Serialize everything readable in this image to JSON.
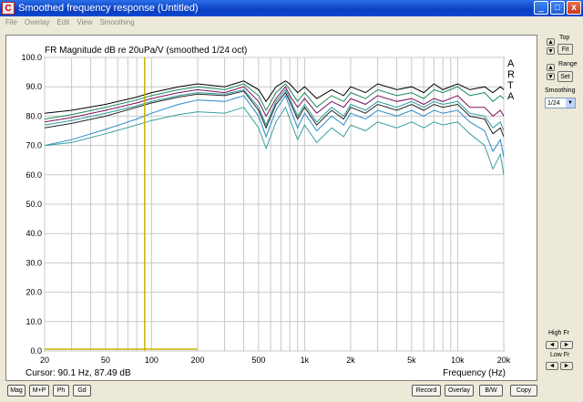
{
  "window": {
    "title": "Smoothed frequency response (Untitled)",
    "app_icon": "C",
    "minimize": "_",
    "maximize": "□",
    "close": "x"
  },
  "menu": [
    "File",
    "Overlay",
    "Edit",
    "View",
    "Smoothing"
  ],
  "right_panel": {
    "top_label": "Top",
    "fit_label": "Fit",
    "range_label": "Range",
    "set_label": "Set",
    "smoothing_label": "Smoothing",
    "smoothing_value": "1/24",
    "high_fr_label": "High Fr",
    "low_fr_label": "Low Fr"
  },
  "bottom_buttons": {
    "mag": "Mag",
    "mp": "M+P",
    "ph": "Ph",
    "gd": "Gd",
    "record": "Record",
    "overlay": "Overlay",
    "bw": "B/W",
    "copy": "Copy"
  },
  "cursor_readout": "Cursor: 90.1 Hz, 87.49 dB",
  "chart_data": {
    "type": "line",
    "title": "FR Magnitude dB re 20uPa/V (smoothed 1/24 oct)",
    "watermark": [
      "A",
      "R",
      "T",
      "A"
    ],
    "xlabel": "Frequency (Hz)",
    "xscale": "log",
    "xlim": [
      20,
      20000
    ],
    "ylim": [
      0,
      100
    ],
    "x_ticks": [
      "20",
      "50",
      "100",
      "200",
      "500",
      "1k",
      "2k",
      "5k",
      "10k",
      "20k"
    ],
    "y_ticks": [
      "0.0",
      "10.0",
      "20.0",
      "30.0",
      "40.0",
      "50.0",
      "60.0",
      "70.0",
      "80.0",
      "90.0",
      "100.0"
    ],
    "grid": true,
    "cursor_x": 90.1,
    "colors": {
      "grid": "#c8c8c8",
      "cursor": "#c8b400",
      "series": [
        "#000000",
        "#1a8a5a",
        "#7a1060",
        "#2a9a9a",
        "#222222",
        "#2a8ac8",
        "#3aa0a0"
      ]
    },
    "x": [
      20,
      30,
      50,
      80,
      100,
      150,
      200,
      300,
      400,
      500,
      560,
      650,
      750,
      800,
      900,
      1000,
      1200,
      1500,
      1800,
      2000,
      2500,
      3000,
      4000,
      5000,
      6000,
      7000,
      8000,
      10000,
      12000,
      15000,
      17000,
      19000,
      20000
    ],
    "series": [
      {
        "values": [
          81,
          82,
          84,
          86.5,
          88,
          90,
          91,
          90,
          92,
          89,
          85,
          90,
          92,
          91,
          88,
          90,
          86,
          89,
          87,
          90,
          88,
          91,
          89,
          90,
          88,
          91,
          89,
          91,
          89,
          90,
          88,
          90,
          89
        ]
      },
      {
        "values": [
          79,
          80.5,
          83,
          85.5,
          87,
          89,
          90,
          89,
          91,
          87,
          82,
          88,
          91,
          89,
          85,
          88,
          83,
          87,
          85,
          88,
          86,
          89,
          87,
          88,
          86,
          89,
          88,
          90,
          87,
          88,
          85,
          87,
          86
        ]
      },
      {
        "values": [
          78,
          79.5,
          82,
          84.5,
          86,
          88,
          89,
          88,
          90,
          85,
          80,
          86,
          90,
          87,
          83,
          86,
          81,
          85,
          83,
          86,
          84,
          87,
          85,
          86,
          84,
          86,
          85,
          87,
          83,
          83,
          80,
          82,
          80
        ]
      },
      {
        "values": [
          77,
          78.5,
          81,
          83.5,
          85,
          87,
          88,
          87.5,
          89,
          83,
          77,
          85,
          89,
          86,
          80,
          84,
          78,
          83,
          80,
          84,
          82,
          85,
          83,
          85,
          83,
          85,
          84,
          85,
          81,
          80,
          76,
          78,
          75
        ]
      },
      {
        "values": [
          76,
          77.5,
          80,
          83,
          84.5,
          86.5,
          87.5,
          87,
          88.5,
          82,
          76,
          84,
          88,
          85,
          79,
          83,
          77,
          82,
          79,
          83,
          81,
          84,
          82,
          84,
          82,
          84,
          83,
          84,
          80,
          79,
          74,
          76,
          73
        ]
      },
      {
        "values": [
          70,
          72,
          75.5,
          79,
          81,
          84,
          85.5,
          85,
          87,
          80,
          73,
          82,
          87,
          83,
          76,
          81,
          75,
          80,
          77,
          81,
          79,
          82,
          80,
          82,
          80,
          82,
          81,
          82,
          78,
          75,
          68,
          72,
          66
        ]
      },
      {
        "values": [
          70,
          71,
          74,
          77,
          78.5,
          80.5,
          81.5,
          81,
          83,
          76,
          69,
          78,
          83,
          79,
          72,
          77,
          71,
          76,
          73,
          77,
          75,
          78,
          76,
          78,
          76,
          78,
          77,
          78,
          74,
          70,
          62,
          67,
          60
        ]
      }
    ]
  }
}
